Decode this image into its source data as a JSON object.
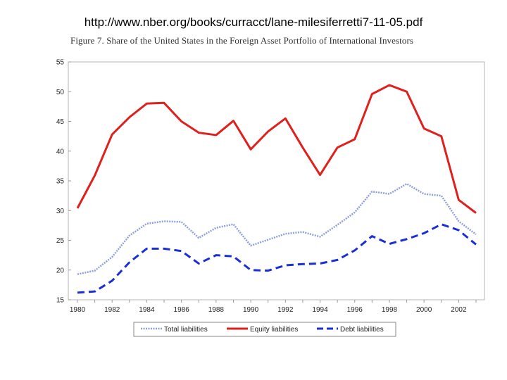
{
  "header": {
    "url": "http://www.nber.org/books/curracct/lane-milesiferretti7-11-05.pdf",
    "figure_title": "Figure 7.   Share of the United States in the Foreign Asset Portfolio of International Investors"
  },
  "chart_data": {
    "type": "line",
    "x": [
      1980,
      1981,
      1982,
      1983,
      1984,
      1985,
      1986,
      1987,
      1988,
      1989,
      1990,
      1991,
      1992,
      1993,
      1994,
      1995,
      1996,
      1997,
      1998,
      1999,
      2000,
      2001,
      2002,
      2003
    ],
    "x_tick_labels": [
      "1980",
      "1982",
      "1984",
      "1986",
      "1988",
      "1990",
      "1992",
      "1994",
      "1996",
      "1998",
      "2000",
      "2002"
    ],
    "y_tick_labels": [
      "15",
      "20",
      "25",
      "30",
      "35",
      "40",
      "45",
      "50",
      "55"
    ],
    "xlim": [
      1980,
      2003
    ],
    "ylim": [
      15,
      55
    ],
    "grid": false,
    "legend_position": "bottom",
    "series": [
      {
        "name": "Total liabilities",
        "color": "#8f9fd8",
        "style": "dotted",
        "values": [
          19.3,
          19.9,
          22.2,
          25.8,
          27.8,
          28.2,
          28.1,
          25.4,
          27.1,
          27.7,
          24.1,
          25.1,
          26.1,
          26.4,
          25.6,
          27.6,
          29.7,
          33.2,
          32.8,
          34.5,
          32.8,
          32.5,
          28.2,
          26.0
        ]
      },
      {
        "name": "Equity liabilities",
        "color": "#e0201c",
        "style": "solid",
        "values": [
          30.4,
          35.9,
          42.8,
          45.7,
          48.0,
          48.1,
          45.0,
          43.1,
          42.7,
          45.1,
          40.3,
          43.3,
          45.5,
          40.6,
          36.0,
          40.6,
          42.0,
          49.6,
          51.1,
          50.0,
          43.8,
          42.5,
          31.8,
          29.6
        ]
      },
      {
        "name": "Debt liabilities",
        "color": "#1a2fd6",
        "style": "dashed",
        "values": [
          16.2,
          16.4,
          18.2,
          21.3,
          23.6,
          23.6,
          23.2,
          21.1,
          22.5,
          22.3,
          20.0,
          19.9,
          20.8,
          21.0,
          21.1,
          21.7,
          23.3,
          25.7,
          24.4,
          25.2,
          26.2,
          27.7,
          26.7,
          24.3
        ]
      }
    ]
  }
}
